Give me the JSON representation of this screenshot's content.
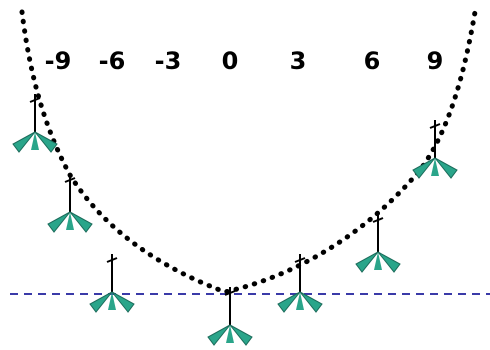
{
  "labels": [
    "-9",
    "-6",
    "-3",
    "0",
    "3",
    "6",
    "9"
  ]
}
